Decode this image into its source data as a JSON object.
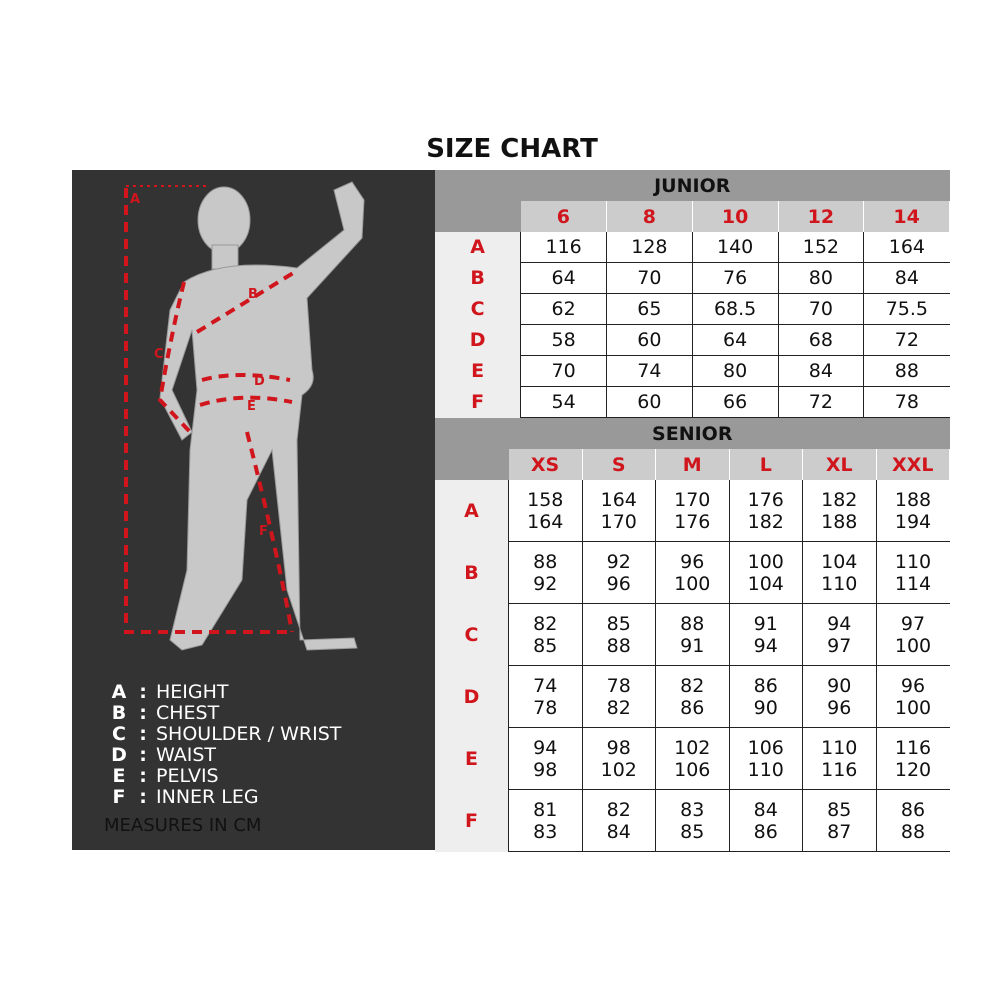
{
  "title": "SIZE CHART",
  "legend": [
    {
      "key": "A",
      "label": "HEIGHT"
    },
    {
      "key": "B",
      "label": "CHEST"
    },
    {
      "key": "C",
      "label": "SHOULDER / WRIST"
    },
    {
      "key": "D",
      "label": "WAIST"
    },
    {
      "key": "E",
      "label": "PELVIS"
    },
    {
      "key": "F",
      "label": "INNER LEG"
    }
  ],
  "measures_note": "MEASURES IN CM",
  "colors": {
    "accent": "#d0161c",
    "panel": "#333333",
    "header": "#999999"
  },
  "junior": {
    "title": "JUNIOR",
    "sizes": [
      "6",
      "8",
      "10",
      "12",
      "14"
    ],
    "rows": [
      {
        "label": "A",
        "values": [
          "116",
          "128",
          "140",
          "152",
          "164"
        ]
      },
      {
        "label": "B",
        "values": [
          "64",
          "70",
          "76",
          "80",
          "84"
        ]
      },
      {
        "label": "C",
        "values": [
          "62",
          "65",
          "68.5",
          "70",
          "75.5"
        ]
      },
      {
        "label": "D",
        "values": [
          "58",
          "60",
          "64",
          "68",
          "72"
        ]
      },
      {
        "label": "E",
        "values": [
          "70",
          "74",
          "80",
          "84",
          "88"
        ]
      },
      {
        "label": "F",
        "values": [
          "54",
          "60",
          "66",
          "72",
          "78"
        ]
      }
    ]
  },
  "senior": {
    "title": "SENIOR",
    "sizes": [
      "XS",
      "S",
      "M",
      "L",
      "XL",
      "XXL"
    ],
    "rows": [
      {
        "label": "A",
        "values": [
          [
            "158",
            "164"
          ],
          [
            "164",
            "170"
          ],
          [
            "170",
            "176"
          ],
          [
            "176",
            "182"
          ],
          [
            "182",
            "188"
          ],
          [
            "188",
            "194"
          ]
        ]
      },
      {
        "label": "B",
        "values": [
          [
            "88",
            "92"
          ],
          [
            "92",
            "96"
          ],
          [
            "96",
            "100"
          ],
          [
            "100",
            "104"
          ],
          [
            "104",
            "110"
          ],
          [
            "110",
            "114"
          ]
        ]
      },
      {
        "label": "C",
        "values": [
          [
            "82",
            "85"
          ],
          [
            "85",
            "88"
          ],
          [
            "88",
            "91"
          ],
          [
            "91",
            "94"
          ],
          [
            "94",
            "97"
          ],
          [
            "97",
            "100"
          ]
        ]
      },
      {
        "label": "D",
        "values": [
          [
            "74",
            "78"
          ],
          [
            "78",
            "82"
          ],
          [
            "82",
            "86"
          ],
          [
            "86",
            "90"
          ],
          [
            "90",
            "96"
          ],
          [
            "96",
            "100"
          ]
        ]
      },
      {
        "label": "E",
        "values": [
          [
            "94",
            "98"
          ],
          [
            "98",
            "102"
          ],
          [
            "102",
            "106"
          ],
          [
            "106",
            "110"
          ],
          [
            "110",
            "116"
          ],
          [
            "116",
            "120"
          ]
        ]
      },
      {
        "label": "F",
        "values": [
          [
            "81",
            "83"
          ],
          [
            "82",
            "84"
          ],
          [
            "83",
            "85"
          ],
          [
            "84",
            "86"
          ],
          [
            "85",
            "87"
          ],
          [
            "86",
            "88"
          ]
        ]
      }
    ]
  },
  "figure_labels": [
    "A",
    "B",
    "C",
    "D",
    "E",
    "F"
  ]
}
